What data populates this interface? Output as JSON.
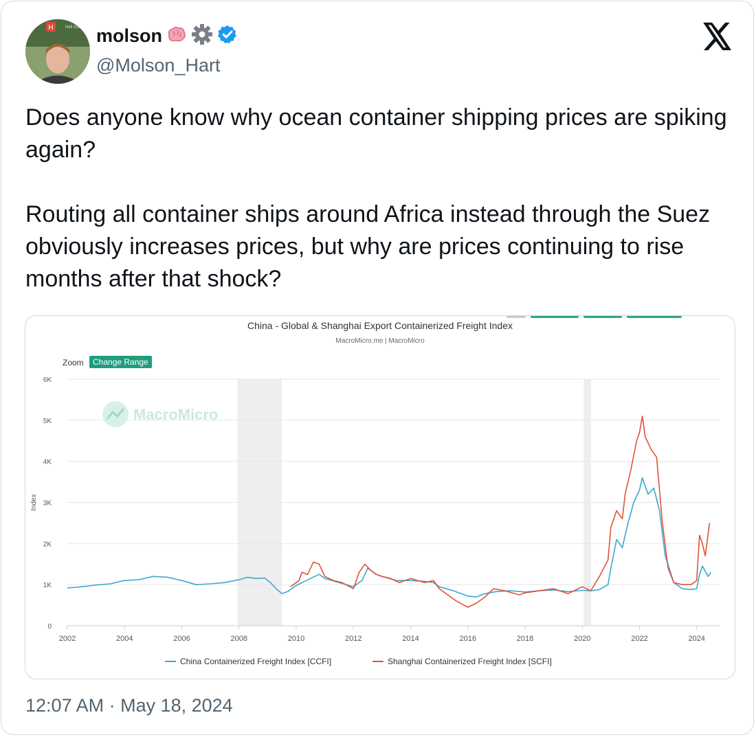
{
  "tweet": {
    "display_name": "molson",
    "emoji_icons": [
      "brain-icon",
      "gear-icon",
      "verified-badge-icon"
    ],
    "handle": "@Molson_Hart",
    "text": "Does anyone know why ocean container shipping prices are spiking again?\n\nRouting all container ships around Africa instead through the Suez obviously increases prices, but why are prices continuing to rise months after that shock?",
    "timestamp": "12:07 AM · May 18, 2024",
    "avatar_badge": "H",
    "avatar_sign": "Hell Group"
  },
  "colors": {
    "ccfi": "#3aa8cf",
    "scfi": "#e0513a",
    "accent": "#1f9d7d",
    "shade": "#eeeeee"
  },
  "chart_data": {
    "type": "line",
    "title": "China - Global & Shanghai Export Containerized Freight Index",
    "subtitle": "MacroMicro.me | MacroMicro",
    "watermark": "MacroMicro",
    "zoom_label": "Zoom",
    "zoom_button": "Change Range",
    "ylabel": "Index",
    "ylim": [
      0,
      6000
    ],
    "yticks": [
      {
        "v": 0,
        "label": "0"
      },
      {
        "v": 1000,
        "label": "1K"
      },
      {
        "v": 2000,
        "label": "2K"
      },
      {
        "v": 3000,
        "label": "3K"
      },
      {
        "v": 4000,
        "label": "4K"
      },
      {
        "v": 5000,
        "label": "5K"
      },
      {
        "v": 6000,
        "label": "6K"
      }
    ],
    "xlim": [
      2002,
      2024.8
    ],
    "xticks": [
      2002,
      2004,
      2006,
      2008,
      2010,
      2012,
      2014,
      2016,
      2018,
      2020,
      2022,
      2024
    ],
    "recessions": [
      [
        2007.95,
        2009.5
      ],
      [
        2020.05,
        2020.3
      ]
    ],
    "grid": true,
    "legend_position": "bottom",
    "series": [
      {
        "name": "China Containerized Freight Index [CCFI]",
        "color": "#3aa8cf",
        "points": [
          [
            2002.0,
            920
          ],
          [
            2002.5,
            950
          ],
          [
            2003.0,
            990
          ],
          [
            2003.5,
            1020
          ],
          [
            2004.0,
            1100
          ],
          [
            2004.5,
            1120
          ],
          [
            2005.0,
            1200
          ],
          [
            2005.5,
            1180
          ],
          [
            2006.0,
            1100
          ],
          [
            2006.5,
            1000
          ],
          [
            2007.0,
            1020
          ],
          [
            2007.5,
            1050
          ],
          [
            2008.0,
            1120
          ],
          [
            2008.3,
            1180
          ],
          [
            2008.6,
            1150
          ],
          [
            2008.9,
            1160
          ],
          [
            2009.1,
            1050
          ],
          [
            2009.3,
            900
          ],
          [
            2009.5,
            780
          ],
          [
            2009.7,
            830
          ],
          [
            2010.0,
            980
          ],
          [
            2010.5,
            1150
          ],
          [
            2010.8,
            1250
          ],
          [
            2011.0,
            1150
          ],
          [
            2011.5,
            1050
          ],
          [
            2012.0,
            950
          ],
          [
            2012.3,
            1100
          ],
          [
            2012.5,
            1400
          ],
          [
            2012.8,
            1250
          ],
          [
            2013.0,
            1200
          ],
          [
            2013.5,
            1100
          ],
          [
            2014.0,
            1100
          ],
          [
            2014.5,
            1080
          ],
          [
            2014.8,
            1050
          ],
          [
            2015.0,
            950
          ],
          [
            2015.5,
            850
          ],
          [
            2016.0,
            720
          ],
          [
            2016.3,
            700
          ],
          [
            2016.6,
            780
          ],
          [
            2017.0,
            830
          ],
          [
            2017.5,
            850
          ],
          [
            2018.0,
            820
          ],
          [
            2018.5,
            850
          ],
          [
            2019.0,
            870
          ],
          [
            2019.5,
            830
          ],
          [
            2020.0,
            860
          ],
          [
            2020.3,
            850
          ],
          [
            2020.6,
            880
          ],
          [
            2020.9,
            1000
          ],
          [
            2021.0,
            1400
          ],
          [
            2021.2,
            2100
          ],
          [
            2021.4,
            1900
          ],
          [
            2021.6,
            2500
          ],
          [
            2021.8,
            3000
          ],
          [
            2022.0,
            3300
          ],
          [
            2022.1,
            3600
          ],
          [
            2022.3,
            3200
          ],
          [
            2022.5,
            3350
          ],
          [
            2022.7,
            2800
          ],
          [
            2022.9,
            1700
          ],
          [
            2023.2,
            1050
          ],
          [
            2023.5,
            900
          ],
          [
            2023.8,
            880
          ],
          [
            2024.0,
            900
          ],
          [
            2024.1,
            1250
          ],
          [
            2024.2,
            1450
          ],
          [
            2024.4,
            1200
          ],
          [
            2024.5,
            1300
          ]
        ]
      },
      {
        "name": "Shanghai Containerized Freight Index [SCFI]",
        "color": "#e0513a",
        "points": [
          [
            2009.8,
            950
          ],
          [
            2010.0,
            1050
          ],
          [
            2010.1,
            1100
          ],
          [
            2010.2,
            1300
          ],
          [
            2010.4,
            1250
          ],
          [
            2010.6,
            1550
          ],
          [
            2010.8,
            1500
          ],
          [
            2011.0,
            1200
          ],
          [
            2011.3,
            1100
          ],
          [
            2011.6,
            1050
          ],
          [
            2012.0,
            900
          ],
          [
            2012.2,
            1300
          ],
          [
            2012.4,
            1500
          ],
          [
            2012.6,
            1350
          ],
          [
            2012.8,
            1250
          ],
          [
            2013.0,
            1200
          ],
          [
            2013.3,
            1150
          ],
          [
            2013.6,
            1050
          ],
          [
            2014.0,
            1150
          ],
          [
            2014.5,
            1050
          ],
          [
            2014.8,
            1100
          ],
          [
            2015.0,
            900
          ],
          [
            2015.3,
            750
          ],
          [
            2015.6,
            600
          ],
          [
            2016.0,
            450
          ],
          [
            2016.3,
            550
          ],
          [
            2016.6,
            700
          ],
          [
            2016.9,
            900
          ],
          [
            2017.3,
            850
          ],
          [
            2017.8,
            750
          ],
          [
            2018.0,
            800
          ],
          [
            2018.5,
            850
          ],
          [
            2019.0,
            900
          ],
          [
            2019.5,
            780
          ],
          [
            2020.0,
            950
          ],
          [
            2020.3,
            850
          ],
          [
            2020.6,
            1200
          ],
          [
            2020.9,
            1600
          ],
          [
            2021.0,
            2400
          ],
          [
            2021.2,
            2800
          ],
          [
            2021.4,
            2600
          ],
          [
            2021.5,
            3200
          ],
          [
            2021.7,
            3800
          ],
          [
            2021.9,
            4500
          ],
          [
            2022.0,
            4700
          ],
          [
            2022.1,
            5100
          ],
          [
            2022.2,
            4600
          ],
          [
            2022.4,
            4300
          ],
          [
            2022.6,
            4100
          ],
          [
            2022.8,
            2500
          ],
          [
            2023.0,
            1400
          ],
          [
            2023.2,
            1050
          ],
          [
            2023.5,
            1000
          ],
          [
            2023.8,
            1000
          ],
          [
            2024.0,
            1100
          ],
          [
            2024.1,
            2200
          ],
          [
            2024.2,
            2000
          ],
          [
            2024.3,
            1700
          ],
          [
            2024.45,
            2500
          ]
        ]
      }
    ]
  }
}
